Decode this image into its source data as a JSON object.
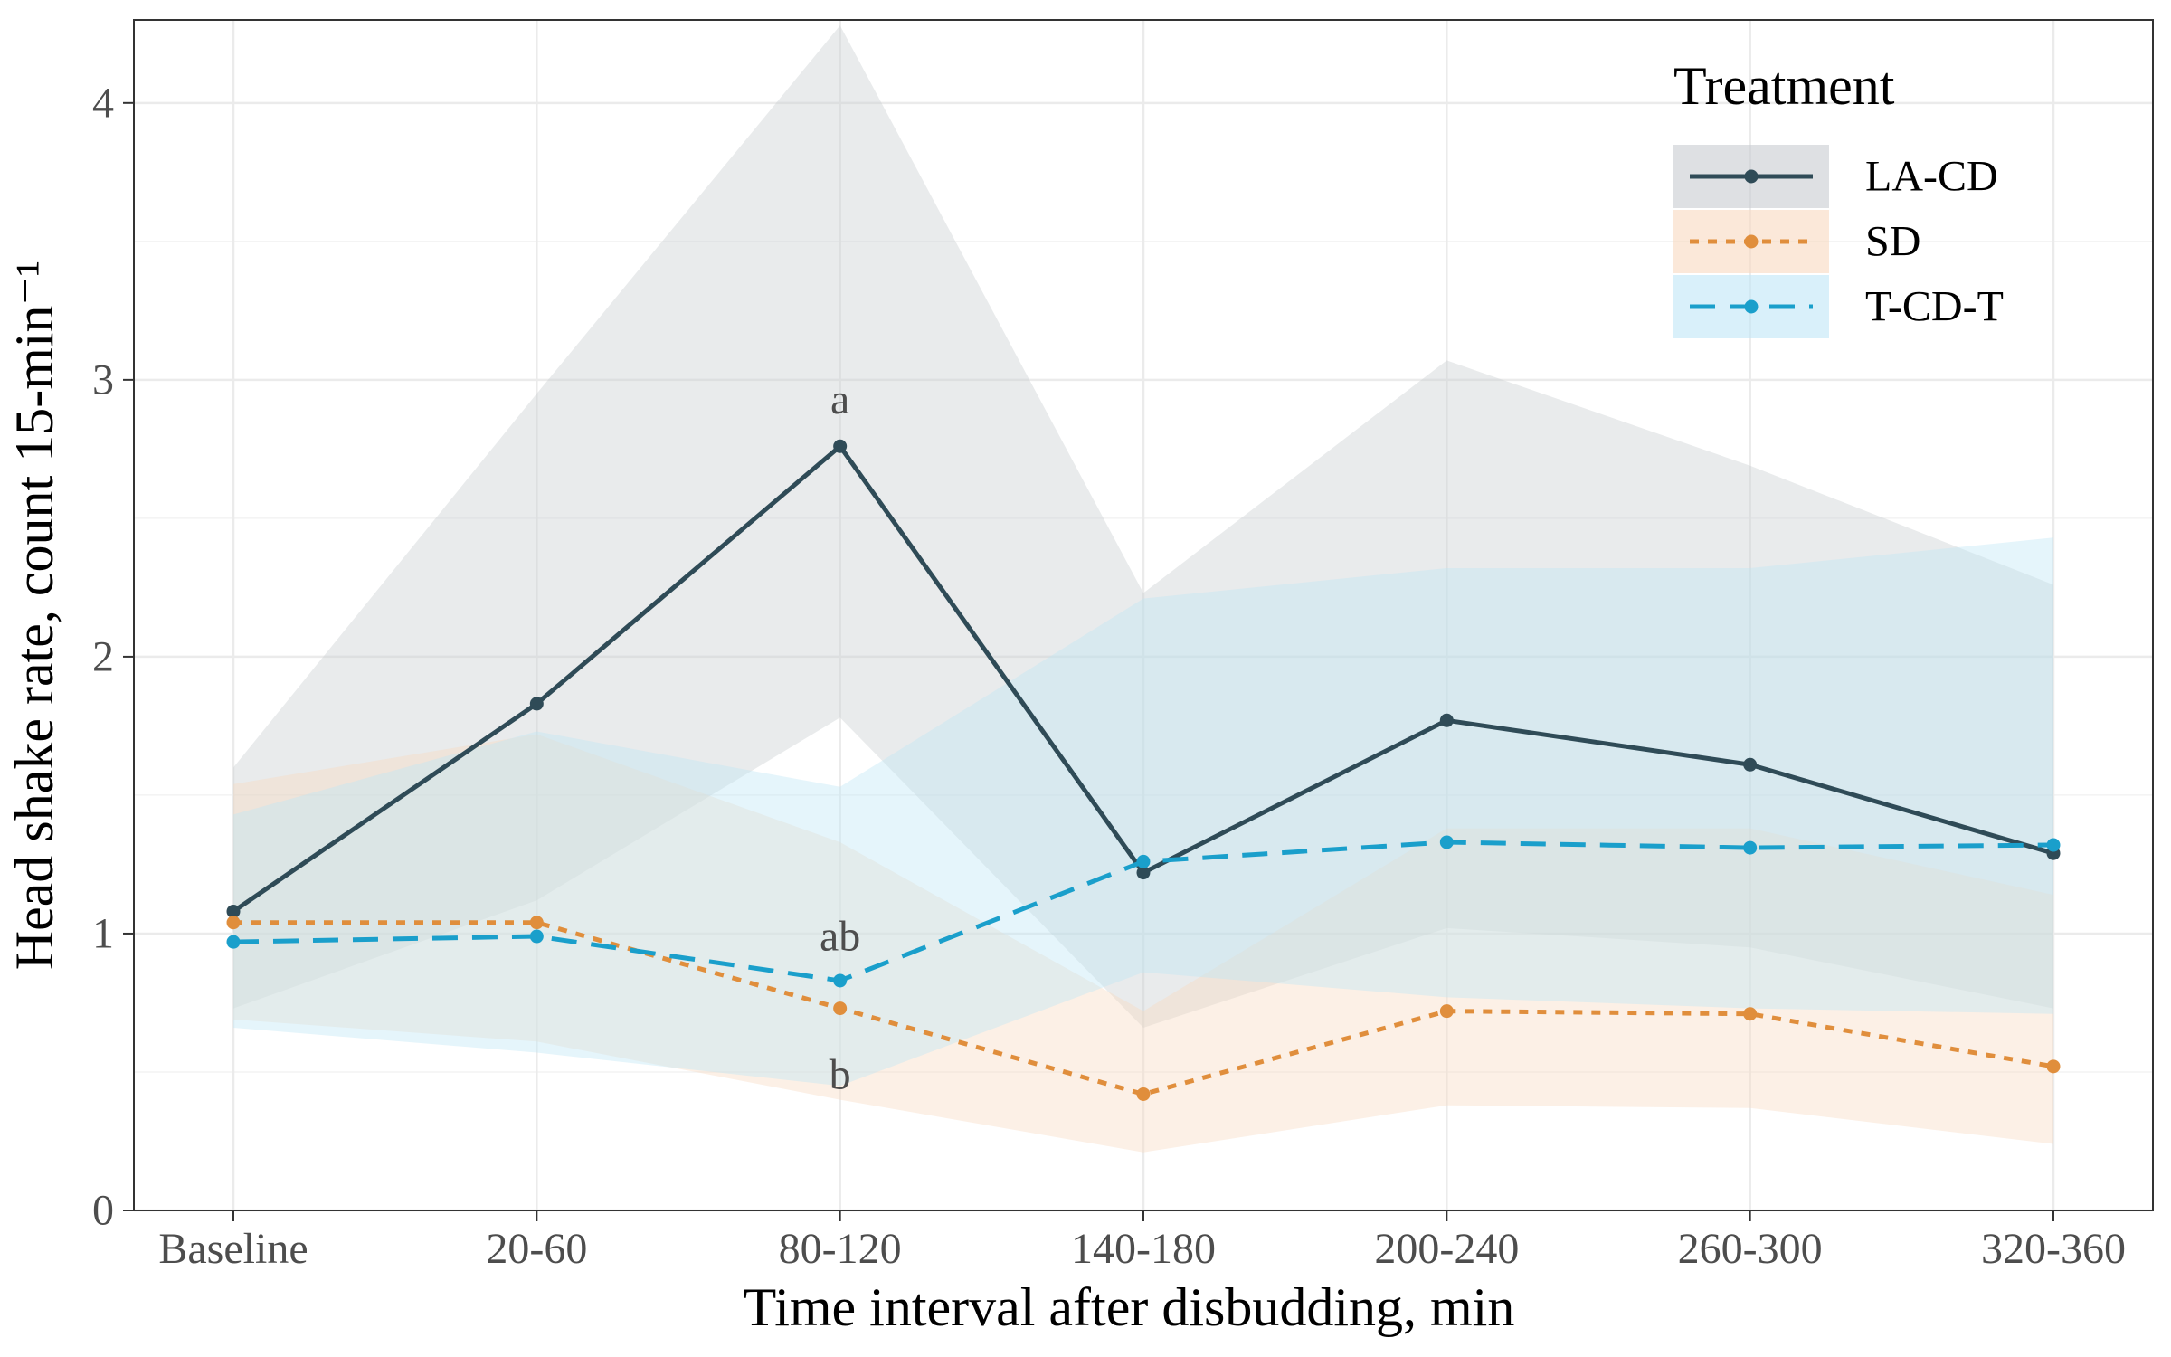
{
  "chart_data": {
    "type": "line",
    "xlabel": "Time interval after disbudding, min",
    "ylabel": "Head shake rate, count 15-min⁻¹",
    "categories": [
      "Baseline",
      "20-60",
      "80-120",
      "140-180",
      "200-240",
      "260-300",
      "320-360"
    ],
    "ylim": [
      0,
      4.3
    ],
    "yticks": [
      0,
      1,
      2,
      3,
      4
    ],
    "grid": true,
    "legend": {
      "title": "Treatment",
      "position": "top-right"
    },
    "series": [
      {
        "name": "LA-CD",
        "color": "#2F4B57",
        "band_color": "#C8CCD0",
        "band_opacity": 0.4,
        "linestyle": "solid",
        "values": [
          1.08,
          1.83,
          2.76,
          1.22,
          1.77,
          1.61,
          1.29
        ],
        "lower": [
          0.73,
          1.12,
          1.78,
          0.66,
          1.02,
          0.95,
          0.73
        ],
        "upper": [
          1.6,
          2.95,
          4.28,
          2.23,
          3.07,
          2.69,
          2.26
        ]
      },
      {
        "name": "SD",
        "color": "#E08E3C",
        "band_color": "#F8D9C0",
        "band_opacity": 0.4,
        "linestyle": "dotted",
        "values": [
          1.04,
          1.04,
          0.73,
          0.42,
          0.72,
          0.71,
          0.52
        ],
        "lower": [
          0.69,
          0.61,
          0.4,
          0.21,
          0.38,
          0.37,
          0.24
        ],
        "upper": [
          1.54,
          1.72,
          1.33,
          0.72,
          1.38,
          1.38,
          1.14
        ]
      },
      {
        "name": "T-CD-T",
        "color": "#1A9FCB",
        "band_color": "#BFE6F6",
        "band_opacity": 0.4,
        "linestyle": "dashed",
        "values": [
          0.97,
          0.99,
          0.83,
          1.26,
          1.33,
          1.31,
          1.32
        ],
        "lower": [
          0.66,
          0.57,
          0.45,
          0.86,
          0.77,
          0.73,
          0.71
        ],
        "upper": [
          1.43,
          1.73,
          1.53,
          2.21,
          2.32,
          2.32,
          2.43
        ]
      }
    ],
    "annotations": [
      {
        "text": "a",
        "category": "80-120",
        "y": 2.93
      },
      {
        "text": "ab",
        "category": "80-120",
        "y": 0.99
      },
      {
        "text": "b",
        "category": "80-120",
        "y": 0.49
      }
    ]
  }
}
